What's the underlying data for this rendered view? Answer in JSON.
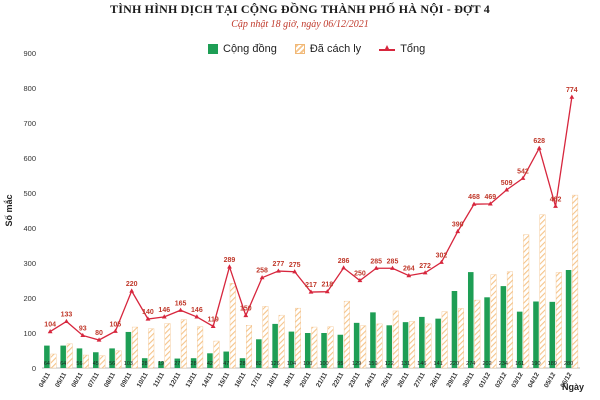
{
  "title": "TÌNH HÌNH DỊCH TẠI CỘNG ĐỒNG THÀNH PHỐ HÀ NỘI - ĐỢT 4",
  "subtitle": "Cập nhật 18 giờ, ngày 06/12/2021",
  "legend": {
    "community": "Cộng đồng",
    "isolated": "Đã cách ly",
    "total": "Tổng"
  },
  "colors": {
    "community": "#1e9e55",
    "isolated": "#f5c48a",
    "total": "#d7263d"
  },
  "chart_data": {
    "type": "bar",
    "ylabel": "Số mắc",
    "xlabel": "Ngày",
    "ylim": [
      0,
      900
    ],
    "yticks": [
      0,
      100,
      200,
      300,
      400,
      500,
      600,
      700,
      800,
      900
    ],
    "grid": false,
    "legend_position": "top",
    "categories": [
      "04/11",
      "05/11",
      "06/11",
      "07/11",
      "08/11",
      "09/11",
      "10/11",
      "11/11",
      "12/11",
      "13/11",
      "14/11",
      "15/11",
      "16/11",
      "17/11",
      "18/11",
      "19/11",
      "20/11",
      "21/11",
      "22/11",
      "23/11",
      "24/11",
      "25/11",
      "26/11",
      "27/11",
      "28/11",
      "29/11",
      "30/11",
      "01/12",
      "02/12",
      "03/12",
      "04/12",
      "05/12",
      "06/12"
    ],
    "series": [
      {
        "name": "Cộng đồng",
        "type": "bar",
        "values": [
          64,
          64,
          56,
          45,
          56,
          103,
          28,
          19,
          27,
          28,
          42,
          47,
          28,
          82,
          126,
          104,
          100,
          100,
          95,
          129,
          159,
          122,
          131,
          146,
          141,
          220,
          274,
          202,
          234,
          161,
          190,
          189,
          280
        ]
      },
      {
        "name": "Đã cách ly",
        "type": "bar",
        "values": [
          40,
          69,
          37,
          35,
          49,
          117,
          112,
          127,
          138,
          118,
          77,
          242,
          122,
          176,
          151,
          171,
          117,
          118,
          191,
          121,
          126,
          163,
          133,
          126,
          161,
          170,
          194,
          267,
          275,
          381,
          438,
          273,
          494
        ]
      },
      {
        "name": "Tổng",
        "type": "line",
        "values": [
          104,
          133,
          93,
          80,
          105,
          220,
          140,
          146,
          165,
          146,
          119,
          289,
          150,
          258,
          277,
          275,
          217,
          218,
          286,
          250,
          285,
          285,
          264,
          272,
          302,
          390,
          468,
          469,
          509,
          542,
          628,
          462,
          774
        ]
      }
    ]
  }
}
